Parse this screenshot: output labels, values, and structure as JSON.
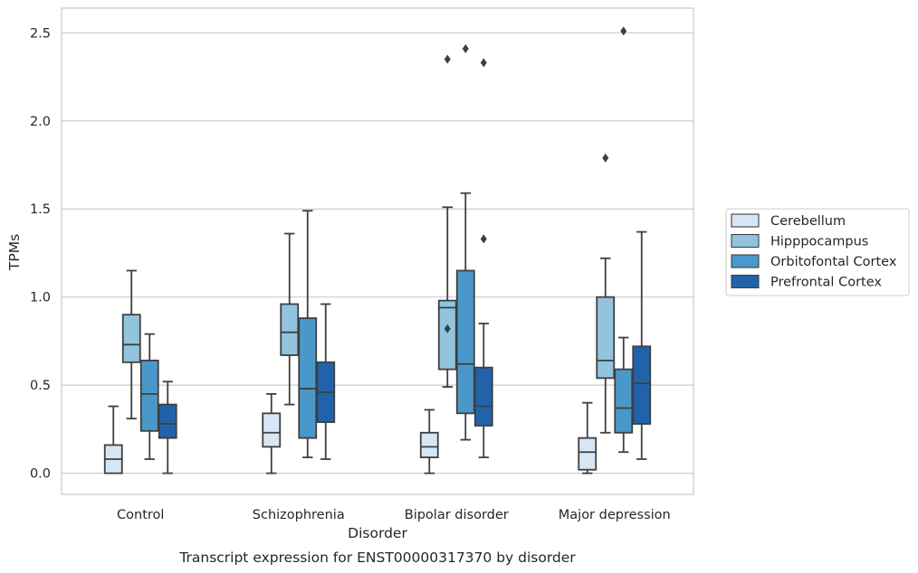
{
  "chart_data": {
    "type": "box",
    "title": "",
    "caption": "Transcript expression for ENST00000317370 by disorder",
    "xlabel": "Disorder",
    "ylabel": "TPMs",
    "ylim": [
      -0.12,
      2.64
    ],
    "yticks": [
      "0.0",
      "0.5",
      "1.0",
      "1.5",
      "2.0",
      "2.5"
    ],
    "ytick_values": [
      0.0,
      0.5,
      1.0,
      1.5,
      2.0,
      2.5
    ],
    "grid": "horizontal",
    "legend_position": "right",
    "categories": [
      "Control",
      "Schizophrenia",
      "Bipolar disorder",
      "Major depression"
    ],
    "series": [
      {
        "name": "Cerebellum",
        "color": "#d6e6f4",
        "boxes": [
          {
            "whisker_low": 0.0,
            "q1": 0.0,
            "median": 0.08,
            "q3": 0.16,
            "whisker_high": 0.38,
            "outliers": []
          },
          {
            "whisker_low": 0.0,
            "q1": 0.15,
            "median": 0.23,
            "q3": 0.34,
            "whisker_high": 0.45,
            "outliers": []
          },
          {
            "whisker_low": 0.0,
            "q1": 0.09,
            "median": 0.15,
            "q3": 0.23,
            "whisker_high": 0.36,
            "outliers": []
          },
          {
            "whisker_low": 0.0,
            "q1": 0.02,
            "median": 0.12,
            "q3": 0.2,
            "whisker_high": 0.4,
            "outliers": []
          }
        ]
      },
      {
        "name": "Hipppocampus",
        "color": "#92c4de",
        "boxes": [
          {
            "whisker_low": 0.31,
            "q1": 0.63,
            "median": 0.73,
            "q3": 0.9,
            "whisker_high": 1.15,
            "outliers": []
          },
          {
            "whisker_low": 0.39,
            "q1": 0.67,
            "median": 0.8,
            "q3": 0.96,
            "whisker_high": 1.36,
            "outliers": []
          },
          {
            "whisker_low": 0.49,
            "q1": 0.59,
            "median": 0.94,
            "q3": 0.98,
            "whisker_high": 1.51,
            "outliers": [
              0.82,
              2.35
            ]
          },
          {
            "whisker_low": 0.23,
            "q1": 0.54,
            "median": 0.64,
            "q3": 1.0,
            "whisker_high": 1.22,
            "outliers": [
              1.79
            ]
          }
        ]
      },
      {
        "name": "Orbitofontal Cortex",
        "color": "#4a98c9",
        "boxes": [
          {
            "whisker_low": 0.08,
            "q1": 0.24,
            "median": 0.45,
            "q3": 0.64,
            "whisker_high": 0.79,
            "outliers": []
          },
          {
            "whisker_low": 0.09,
            "q1": 0.2,
            "median": 0.48,
            "q3": 0.88,
            "whisker_high": 1.49,
            "outliers": []
          },
          {
            "whisker_low": 0.19,
            "q1": 0.34,
            "median": 0.62,
            "q3": 1.15,
            "whisker_high": 1.59,
            "outliers": [
              2.41
            ]
          },
          {
            "whisker_low": 0.12,
            "q1": 0.23,
            "median": 0.37,
            "q3": 0.59,
            "whisker_high": 0.77,
            "outliers": [
              2.51
            ]
          }
        ]
      },
      {
        "name": "Prefrontal Cortex",
        "color": "#2163aa",
        "boxes": [
          {
            "whisker_low": 0.0,
            "q1": 0.2,
            "median": 0.28,
            "q3": 0.39,
            "whisker_high": 0.52,
            "outliers": []
          },
          {
            "whisker_low": 0.08,
            "q1": 0.29,
            "median": 0.46,
            "q3": 0.63,
            "whisker_high": 0.96,
            "outliers": []
          },
          {
            "whisker_low": 0.09,
            "q1": 0.27,
            "median": 0.38,
            "q3": 0.6,
            "whisker_high": 0.85,
            "outliers": [
              1.33,
              2.33
            ]
          },
          {
            "whisker_low": 0.08,
            "q1": 0.28,
            "median": 0.51,
            "q3": 0.72,
            "whisker_high": 1.37,
            "outliers": []
          }
        ]
      }
    ]
  }
}
